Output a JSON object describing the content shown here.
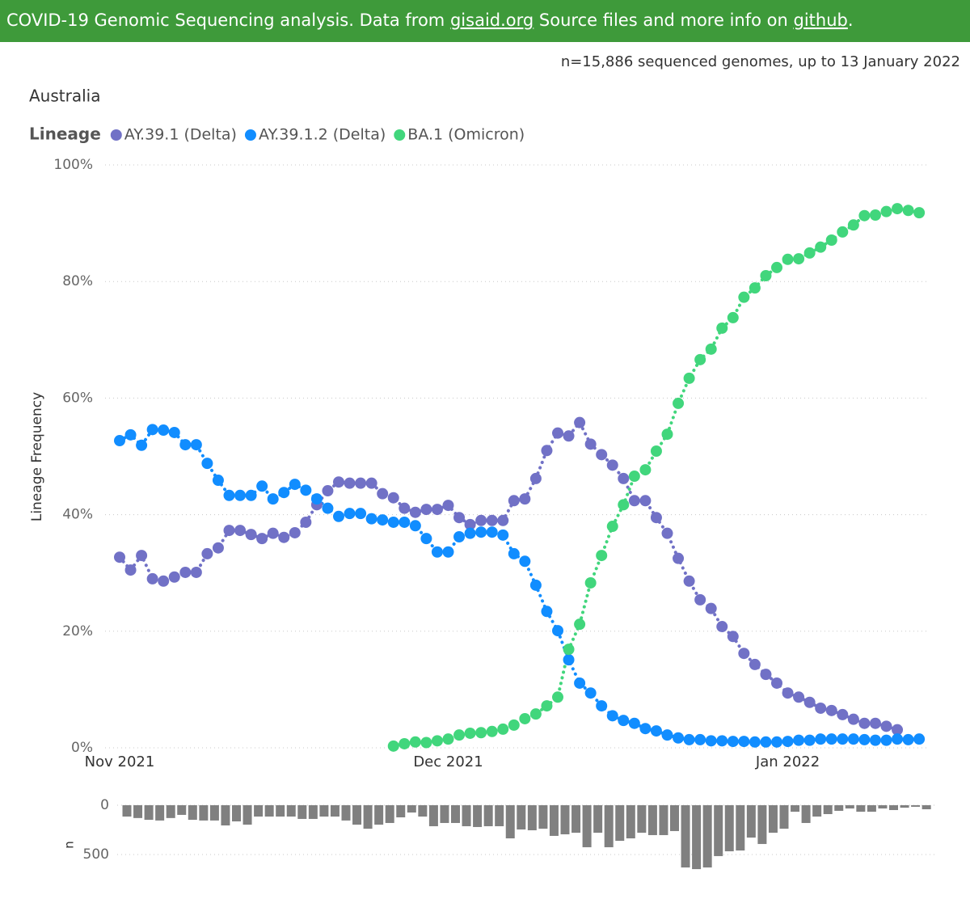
{
  "header": {
    "text_1": "COVID-19 Genomic Sequencing analysis. Data from",
    "link_1": "gisaid.org",
    "text_2": "Source files and more info on",
    "link_2": "github",
    "text_3": "."
  },
  "chart_data": [
    {
      "type": "line",
      "title": "Australia",
      "subtitle": "n=15,886 sequenced genomes, up to 13 January 2022",
      "legend_title": "Lineage",
      "ylabel": "Lineage Frequency",
      "categories": [
        "Nov 2021",
        null,
        null,
        null,
        null,
        null,
        null,
        null,
        null,
        null,
        null,
        null,
        null,
        null,
        null,
        null,
        null,
        null,
        null,
        null,
        null,
        null,
        null,
        null,
        null,
        null,
        null,
        null,
        null,
        null,
        "Dec 2021",
        null,
        null,
        null,
        null,
        null,
        null,
        null,
        null,
        null,
        null,
        null,
        null,
        null,
        null,
        null,
        null,
        null,
        null,
        null,
        null,
        null,
        null,
        null,
        null,
        null,
        null,
        null,
        null,
        null,
        null,
        "Jan 2022",
        null,
        null,
        null,
        null,
        null,
        null,
        null,
        null,
        null,
        null,
        null,
        null
      ],
      "ylim": [
        0,
        100
      ],
      "yticks": [
        {
          "value": 0,
          "label": "0%"
        },
        {
          "value": 20,
          "label": "20%"
        },
        {
          "value": 40,
          "label": "40%"
        },
        {
          "value": 60,
          "label": "60%"
        },
        {
          "value": 80,
          "label": "80%"
        },
        {
          "value": 100,
          "label": "100%"
        }
      ],
      "grid": true,
      "series": [
        {
          "name": "AY.39.1 (Delta)",
          "color": "#7171c6",
          "values": [
            32.7,
            30.5,
            33.0,
            29.0,
            28.6,
            29.3,
            30.1,
            30.1,
            33.3,
            34.3,
            37.3,
            37.3,
            36.6,
            35.9,
            36.8,
            36.1,
            36.9,
            38.7,
            41.7,
            44.1,
            45.6,
            45.4,
            45.4,
            45.4,
            43.6,
            42.9,
            41.1,
            40.4,
            40.9,
            40.9,
            41.6,
            39.5,
            38.3,
            39.0,
            39.0,
            39.0,
            42.4,
            42.7,
            46.2,
            51.0,
            54.0,
            53.5,
            55.8,
            52.1,
            50.3,
            48.5,
            46.2,
            42.4,
            42.4,
            39.5,
            36.8,
            32.5,
            28.6,
            25.4,
            23.9,
            20.8,
            19.1,
            16.2,
            14.3,
            12.6,
            11.1,
            9.4,
            8.7,
            7.8,
            6.8,
            6.4,
            5.7,
            4.9,
            4.2,
            4.2,
            3.7,
            3.1,
            null,
            null
          ]
        },
        {
          "name": "AY.39.1.2 (Delta)",
          "color": "#118dff",
          "values": [
            52.7,
            53.7,
            51.9,
            54.6,
            54.5,
            54.1,
            52.0,
            52.0,
            48.8,
            45.9,
            43.3,
            43.3,
            43.3,
            44.9,
            42.7,
            43.8,
            45.2,
            44.2,
            42.7,
            41.1,
            39.7,
            40.2,
            40.2,
            39.3,
            39.1,
            38.7,
            38.7,
            38.1,
            35.9,
            33.6,
            33.6,
            36.2,
            36.8,
            37.0,
            37.0,
            36.5,
            33.3,
            32.0,
            27.9,
            23.4,
            20.1,
            15.1,
            11.1,
            9.4,
            7.2,
            5.5,
            4.7,
            4.2,
            3.3,
            2.9,
            2.2,
            1.7,
            1.4,
            1.4,
            1.2,
            1.2,
            1.1,
            1.1,
            1.0,
            1.0,
            1.0,
            1.1,
            1.3,
            1.3,
            1.5,
            1.5,
            1.5,
            1.5,
            1.4,
            1.3,
            1.3,
            1.5,
            1.4,
            1.5
          ]
        },
        {
          "name": "BA.1 (Omicron)",
          "color": "#41d67c",
          "values": [
            null,
            null,
            null,
            null,
            null,
            null,
            null,
            null,
            null,
            null,
            null,
            null,
            null,
            null,
            null,
            null,
            null,
            null,
            null,
            null,
            null,
            null,
            null,
            null,
            null,
            0.3,
            0.7,
            1.0,
            0.9,
            1.2,
            1.5,
            2.2,
            2.5,
            2.6,
            2.8,
            3.2,
            3.9,
            5.0,
            5.8,
            7.2,
            8.7,
            16.9,
            21.2,
            28.3,
            33.0,
            38.0,
            41.7,
            46.6,
            47.7,
            50.9,
            53.8,
            59.1,
            63.4,
            66.6,
            68.4,
            72.0,
            73.8,
            77.3,
            78.9,
            81.0,
            82.4,
            83.8,
            83.9,
            84.9,
            85.9,
            87.1,
            88.5,
            89.7,
            91.3,
            91.4,
            92.0,
            92.5,
            92.2,
            91.8
          ]
        }
      ]
    },
    {
      "type": "bar",
      "ylabel": "n",
      "color": "#808080",
      "y_inverted": true,
      "ylim": [
        0,
        700
      ],
      "yticks": [
        0,
        500
      ],
      "grid": true,
      "values": [
        115,
        130,
        148,
        155,
        130,
        98,
        148,
        155,
        155,
        205,
        164,
        197,
        115,
        115,
        115,
        115,
        139,
        139,
        115,
        115,
        155,
        197,
        238,
        197,
        180,
        123,
        74,
        115,
        213,
        180,
        180,
        213,
        221,
        213,
        213,
        336,
        246,
        254,
        238,
        311,
        295,
        279,
        426,
        279,
        426,
        361,
        336,
        279,
        303,
        303,
        262,
        631,
        648,
        631,
        516,
        467,
        459,
        328,
        393,
        279,
        238,
        66,
        180,
        115,
        90,
        57,
        33,
        66,
        66,
        33,
        49,
        25,
        16,
        41
      ]
    }
  ]
}
